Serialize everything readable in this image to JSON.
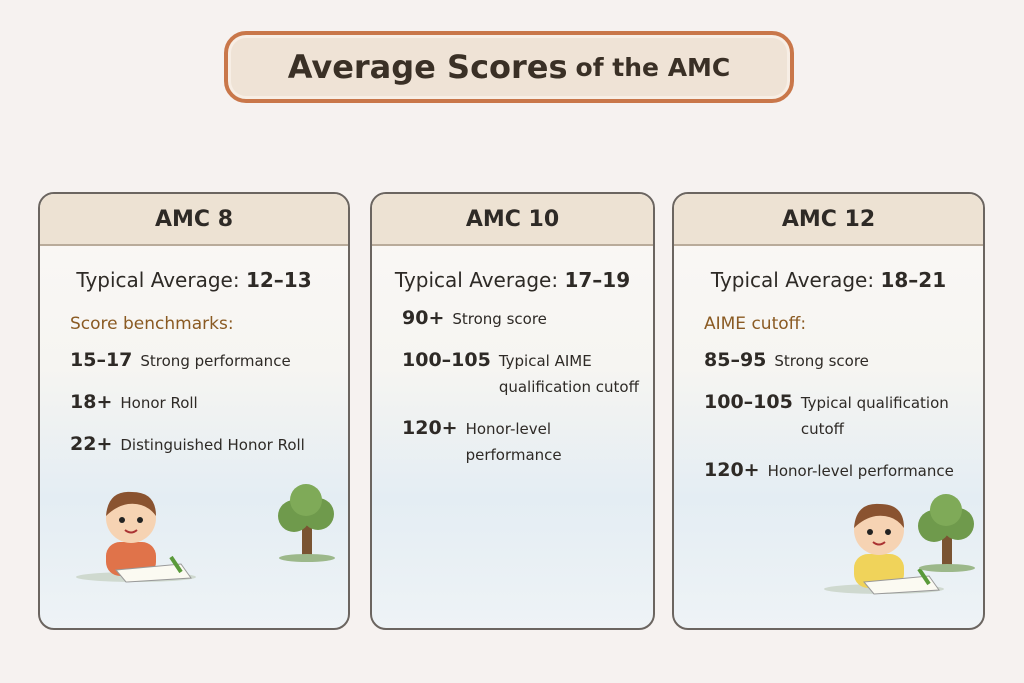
{
  "header": {
    "title": "Average Scores",
    "title_tail": "of the AMC"
  },
  "cards": [
    {
      "heading": "AMC 8",
      "average_label": "Typical Average:",
      "average_value": "12–13",
      "section": "Score benchmarks:",
      "rows": [
        {
          "score": "15–17",
          "text": "Strong performance"
        },
        {
          "score": "18+",
          "text": "Honor Roll"
        },
        {
          "score": "22+",
          "text": "Distinguished Honor Roll"
        }
      ]
    },
    {
      "heading": "AMC 10",
      "average_label": "Typical Average:",
      "average_value": "17–19",
      "rows": [
        {
          "score": "90+",
          "text": "Strong score"
        },
        {
          "score": "100–105",
          "text": "Typical AIME qualification cutoff"
        },
        {
          "score": "120+",
          "text": "Honor-level performance"
        }
      ]
    },
    {
      "heading": "AMC 12",
      "average_label": "Typical Average:",
      "average_value": "18–21",
      "section": "AIME cutoff:",
      "rows": [
        {
          "score": "85–95",
          "text": "Strong score"
        },
        {
          "score": "100–105",
          "text": "Typical qualification cutoff"
        },
        {
          "score": "120+",
          "text": "Honor-level performance"
        }
      ]
    }
  ]
}
